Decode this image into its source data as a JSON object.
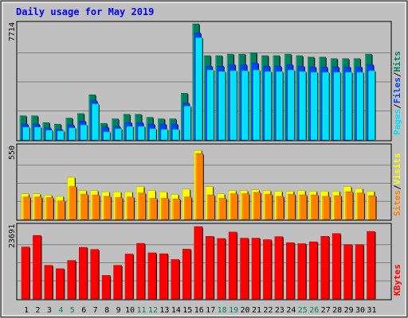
{
  "title": "Daily usage for May 2019",
  "colors": {
    "background": "#C0C0C0",
    "title": "#0000FF",
    "hits": "#00805C",
    "files": "#0040FF",
    "pages": "#00E0FF",
    "visits": "#FFFF00",
    "sites": "#FF8000",
    "kbytes": "#FF0000",
    "weekend_label": "#00805C"
  },
  "chart_data": [
    {
      "type": "bar",
      "panel": "top",
      "y_label_left": "7714",
      "ylim": [
        0,
        7714
      ],
      "side_legend": [
        "Pages",
        "Files",
        "Hits"
      ],
      "categories": [
        "1",
        "2",
        "3",
        "4",
        "5",
        "6",
        "7",
        "8",
        "9",
        "10",
        "11",
        "12",
        "13",
        "14",
        "15",
        "16",
        "17",
        "18",
        "19",
        "20",
        "21",
        "22",
        "23",
        "24",
        "25",
        "26",
        "27",
        "28",
        "29",
        "30",
        "31"
      ],
      "weekend_days": [
        "4",
        "5",
        "11",
        "12",
        "18",
        "19",
        "25",
        "26"
      ],
      "series": [
        {
          "name": "Hits",
          "values": [
            1600,
            1600,
            1150,
            1050,
            1450,
            1750,
            3000,
            1100,
            1400,
            1700,
            1700,
            1500,
            1400,
            1400,
            3100,
            7714,
            5600,
            5600,
            5700,
            5700,
            5800,
            5600,
            5600,
            5700,
            5600,
            5500,
            5500,
            5400,
            5400,
            5400,
            5700
          ]
        },
        {
          "name": "Files",
          "values": [
            1050,
            1050,
            800,
            700,
            1000,
            1250,
            2600,
            850,
            900,
            1150,
            1150,
            1050,
            1050,
            1050,
            2450,
            7100,
            4900,
            4900,
            5000,
            5000,
            5100,
            4900,
            4900,
            5000,
            4900,
            4850,
            4850,
            4850,
            4850,
            4850,
            5000
          ]
        },
        {
          "name": "Pages",
          "values": [
            850,
            850,
            650,
            600,
            800,
            1000,
            2400,
            550,
            750,
            900,
            900,
            750,
            700,
            700,
            2250,
            6800,
            4650,
            4550,
            4600,
            4600,
            4650,
            4550,
            4550,
            4650,
            4550,
            4500,
            4500,
            4500,
            4500,
            4500,
            4600
          ]
        }
      ]
    },
    {
      "type": "bar",
      "panel": "middle",
      "y_label_left": "550",
      "ylim": [
        0,
        550
      ],
      "side_legend": [
        "Sites",
        "Visits"
      ],
      "categories": [
        "1",
        "2",
        "3",
        "4",
        "5",
        "6",
        "7",
        "8",
        "9",
        "10",
        "11",
        "12",
        "13",
        "14",
        "15",
        "16",
        "17",
        "18",
        "19",
        "20",
        "21",
        "22",
        "23",
        "24",
        "25",
        "26",
        "27",
        "28",
        "29",
        "30",
        "31"
      ],
      "series": [
        {
          "name": "Visits",
          "values": [
            195,
            195,
            185,
            175,
            320,
            220,
            220,
            210,
            210,
            210,
            250,
            220,
            210,
            190,
            230,
            525,
            250,
            195,
            220,
            220,
            225,
            220,
            215,
            215,
            220,
            215,
            215,
            215,
            250,
            235,
            215
          ]
        },
        {
          "name": "Sites",
          "values": [
            170,
            170,
            165,
            140,
            250,
            190,
            185,
            175,
            165,
            170,
            200,
            160,
            160,
            155,
            170,
            500,
            185,
            160,
            195,
            195,
            205,
            190,
            175,
            190,
            185,
            185,
            175,
            180,
            210,
            200,
            180
          ]
        }
      ]
    },
    {
      "type": "bar",
      "panel": "bottom",
      "y_label_left": "23691",
      "ylim": [
        0,
        23691
      ],
      "side_legend": [
        "KBytes"
      ],
      "categories": [
        "1",
        "2",
        "3",
        "4",
        "5",
        "6",
        "7",
        "8",
        "9",
        "10",
        "11",
        "12",
        "13",
        "14",
        "15",
        "16",
        "17",
        "18",
        "19",
        "20",
        "21",
        "22",
        "23",
        "24",
        "25",
        "26",
        "27",
        "28",
        "29",
        "30",
        "31"
      ],
      "series": [
        {
          "name": "KBytes",
          "values": [
            17000,
            20800,
            11000,
            9900,
            12600,
            16900,
            16200,
            7700,
            11000,
            14700,
            18200,
            15100,
            14800,
            12900,
            16300,
            23691,
            20500,
            19800,
            21900,
            19900,
            19900,
            19400,
            20400,
            18400,
            18100,
            18700,
            20500,
            21400,
            17800,
            17800,
            22100
          ]
        }
      ]
    }
  ]
}
